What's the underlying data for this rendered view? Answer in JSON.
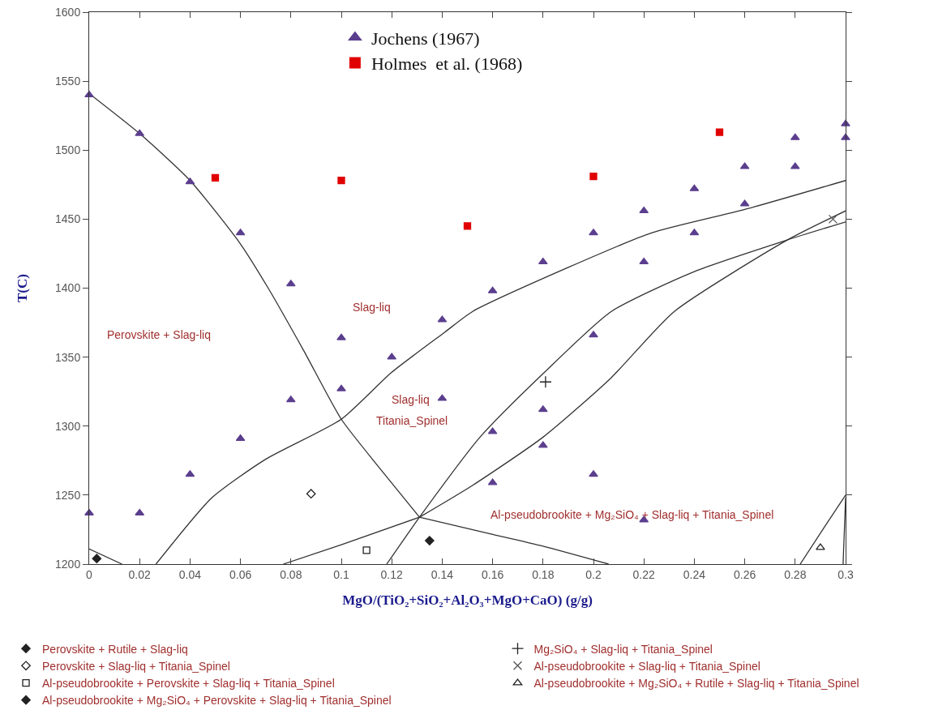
{
  "chart_data": {
    "type": "scatter",
    "xlabel": "MgO/(TiO₂+SiO₂+Al₂O₃+MgO+CaO) (g/g)",
    "ylabel": "T(C)",
    "xlim": [
      0,
      0.3
    ],
    "xticks": [
      0,
      0.02,
      0.04,
      0.06,
      0.08,
      0.1,
      0.12,
      0.14,
      0.16,
      0.18,
      0.2,
      0.22,
      0.24,
      0.26,
      0.28,
      0.3
    ],
    "ylim": [
      1200,
      1600
    ],
    "yticks": [
      1200,
      1250,
      1300,
      1350,
      1400,
      1450,
      1500,
      1550,
      1600
    ],
    "grid": false,
    "legend": "bottom",
    "series": [
      {
        "name": "Jochens (1967)",
        "marker": "triangle",
        "color": "#5b3e8e",
        "x": [
          0,
          0.02,
          0.04,
          0.06,
          0.08,
          0.1,
          0.1,
          0.08,
          0.06,
          0.04,
          0.02,
          0,
          0.12,
          0.14,
          0.14,
          0.16,
          0.16,
          0.16,
          0.18,
          0.18,
          0.18,
          0.2,
          0.2,
          0.2,
          0.22,
          0.22,
          0.22,
          0.24,
          0.24,
          0.26,
          0.26,
          0.28,
          0.28,
          0.3,
          0.3
        ],
        "values": [
          1540,
          1512,
          1477,
          1440,
          1403,
          1364,
          1327,
          1319,
          1291,
          1265,
          1237,
          1237,
          1350,
          1377,
          1320,
          1398,
          1296,
          1259,
          1419,
          1312,
          1286,
          1440,
          1366,
          1265,
          1456,
          1419,
          1232,
          1472,
          1440,
          1488,
          1461,
          1509,
          1488,
          1519,
          1509
        ]
      },
      {
        "name": "Holmes  et al. (1968)",
        "marker": "square",
        "color": "#e00000",
        "x": [
          0.05,
          0.1,
          0.15,
          0.2,
          0.25
        ],
        "values": [
          1480,
          1478,
          1445,
          1481,
          1513
        ]
      },
      {
        "name": "Perovskite + Rutile + Slag-liq",
        "type": "scatter",
        "marker": "diamond",
        "color": "#222222",
        "x": [
          0.003
        ],
        "values": [
          1204
        ]
      },
      {
        "name": "Perovskite + Slag-liq + Titania_Spinel",
        "type": "scatter",
        "marker": "diamond-open",
        "color": "#222222",
        "x": [
          0.088
        ],
        "values": [
          1251
        ]
      },
      {
        "name": "Al-pseudobrookite + Perovskite + Slag-liq + Titania_Spinel",
        "type": "scatter",
        "marker": "square-open",
        "color": "#222222",
        "x": [
          0.11
        ],
        "values": [
          1210
        ]
      },
      {
        "name": "Al-pseudobrookite + Mg₂SiO₄ + Perovskite + Slag-liq + Titania_Spinel",
        "type": "scatter",
        "marker": "diamond",
        "color": "#222222",
        "x": [
          0.135
        ],
        "values": [
          1217
        ]
      },
      {
        "name": "Mg₂SiO₄ + Slag-liq + Titania_Spinel",
        "type": "scatter",
        "marker": "cross",
        "color": "#222222",
        "x": [
          0.181
        ],
        "values": [
          1332
        ]
      },
      {
        "name": "Al-pseudobrookite + Slag-liq + Titania_Spinel",
        "type": "scatter",
        "marker": "x",
        "color": "#555555",
        "x": [
          0.295
        ],
        "values": [
          1450
        ]
      },
      {
        "name": "Al-pseudobrookite + Mg₂SiO₄ + Rutile + Slag-liq + Titania_Spinel",
        "type": "scatter",
        "marker": "triangle-open",
        "color": "#222222",
        "x": [
          0.29
        ],
        "values": [
          1212
        ]
      },
      {
        "type": "line",
        "color": "#333333",
        "x": [
          0,
          0.02,
          0.04,
          0.06,
          0.071,
          0.085,
          0.1,
          0.115,
          0.131
        ],
        "values": [
          1541,
          1512,
          1478,
          1432,
          1400,
          1355,
          1305,
          1270,
          1234
        ]
      },
      {
        "type": "line",
        "color": "#333333",
        "x": [
          0.0265,
          0.0486,
          0.07,
          0.1,
          0.12,
          0.141,
          0.152,
          0.19,
          0.223,
          0.26,
          0.3
        ],
        "values": [
          1200,
          1248,
          1276,
          1305,
          1339,
          1368,
          1383,
          1415,
          1440,
          1457,
          1478
        ]
      },
      {
        "type": "line",
        "color": "#333333",
        "x": [
          0.118,
          0.131,
          0.155,
          0.18,
          0.207,
          0.24,
          0.277,
          0.3
        ],
        "values": [
          1200,
          1234,
          1292,
          1338,
          1383,
          1412,
          1435,
          1448
        ]
      },
      {
        "type": "line",
        "color": "#333333",
        "x": [
          0.131,
          0.152,
          0.18,
          0.207,
          0.232,
          0.277,
          0.3
        ],
        "values": [
          1234,
          1257,
          1292,
          1335,
          1383,
          1435,
          1456
        ]
      },
      {
        "type": "line",
        "color": "#333333",
        "x": [
          0.131,
          0.159,
          0.18,
          0.206
        ],
        "values": [
          1234,
          1222,
          1213,
          1200
        ]
      },
      {
        "type": "line",
        "color": "#333333",
        "x": [
          0.077,
          0.1,
          0.131
        ],
        "values": [
          1200,
          1214,
          1234
        ]
      },
      {
        "type": "line",
        "color": "#333333",
        "x": [
          0,
          0.013
        ],
        "values": [
          1211,
          1200
        ]
      },
      {
        "type": "line",
        "color": "#333333",
        "x": [
          0.282,
          0.292,
          0.3
        ],
        "values": [
          1200,
          1228,
          1250
        ]
      },
      {
        "type": "line",
        "color": "#333333",
        "x": [
          0.299,
          0.3
        ],
        "values": [
          1200,
          1248
        ]
      }
    ],
    "annotations": [
      "Perovskite + Slag-liq",
      "Slag-liq",
      "Slag-liq",
      "Titania_Spinel",
      "Al-pseudobrookite + Mg₂SiO₄ + Slag-liq + Titania_Spinel"
    ]
  }
}
